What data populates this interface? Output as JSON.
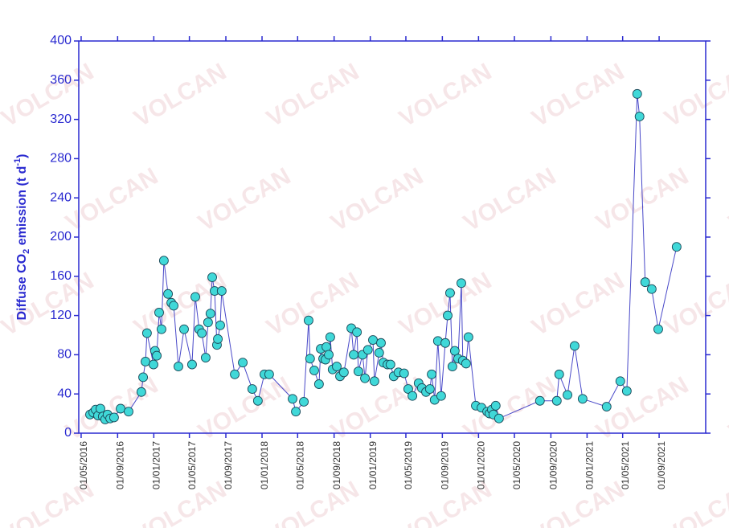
{
  "chart_data": {
    "type": "line",
    "watermark": "VOLCAN",
    "y_label": [
      "Diffuse CO",
      "2",
      " emission (t d",
      "-1",
      ")"
    ],
    "x": [
      "2016-05-31",
      "2016-06-11",
      "2016-06-19",
      "2016-06-27",
      "2016-07-05",
      "2016-07-13",
      "2016-07-21",
      "2016-07-29",
      "2016-08-07",
      "2016-08-20",
      "2016-09-11",
      "2016-10-08",
      "2016-11-20",
      "2016-11-26",
      "2016-12-04",
      "2016-12-09",
      "2016-12-31",
      "2017-01-05",
      "2017-01-11",
      "2017-01-19",
      "2017-01-27",
      "2017-02-04",
      "2017-02-18",
      "2017-03-01",
      "2017-03-09",
      "2017-03-25",
      "2017-04-13",
      "2017-05-10",
      "2017-05-21",
      "2017-06-03",
      "2017-06-12",
      "2017-06-25",
      "2017-07-03",
      "2017-07-11",
      "2017-07-17",
      "2017-07-25",
      "2017-08-02",
      "2017-08-05",
      "2017-08-13",
      "2017-08-18",
      "2017-10-01",
      "2017-10-28",
      "2017-11-29",
      "2017-12-18",
      "2018-01-09",
      "2018-01-25",
      "2018-04-14",
      "2018-04-25",
      "2018-05-22",
      "2018-06-07",
      "2018-06-12",
      "2018-06-26",
      "2018-07-12",
      "2018-07-18",
      "2018-07-26",
      "2018-08-03",
      "2018-08-06",
      "2018-08-14",
      "2018-08-19",
      "2018-08-27",
      "2018-09-10",
      "2018-09-21",
      "2018-10-04",
      "2018-10-29",
      "2018-11-06",
      "2018-11-17",
      "2018-11-22",
      "2018-12-06",
      "2018-12-14",
      "2018-12-24",
      "2019-01-10",
      "2019-01-15",
      "2019-01-31",
      "2019-02-06",
      "2019-02-14",
      "2019-02-28",
      "2019-03-10",
      "2019-03-21",
      "2019-04-06",
      "2019-04-25",
      "2019-05-09",
      "2019-05-23",
      "2019-06-13",
      "2019-06-24",
      "2019-07-08",
      "2019-07-21",
      "2019-07-27",
      "2019-08-06",
      "2019-08-17",
      "2019-08-28",
      "2019-09-11",
      "2019-09-19",
      "2019-09-27",
      "2019-10-05",
      "2019-10-13",
      "2019-10-24",
      "2019-11-04",
      "2019-11-09",
      "2019-11-20",
      "2019-11-28",
      "2019-12-23",
      "2020-01-11",
      "2020-01-30",
      "2020-02-07",
      "2020-02-15",
      "2020-02-20",
      "2020-02-28",
      "2020-03-10",
      "2020-07-26",
      "2020-09-21",
      "2020-09-29",
      "2020-10-27",
      "2020-11-20",
      "2020-12-17",
      "2021-03-08",
      "2021-04-23",
      "2021-05-15",
      "2021-06-19",
      "2021-06-27",
      "2021-07-16",
      "2021-08-07",
      "2021-08-29",
      "2021-10-30"
    ],
    "series": [
      {
        "name": "Diffuse CO2 emission",
        "color": "#40d8d8",
        "line_color": "#4848c8",
        "values": [
          19,
          21,
          24,
          18,
          25,
          17,
          14,
          19,
          15,
          16,
          25,
          22,
          42,
          57,
          73,
          102,
          70,
          84,
          79,
          123,
          106,
          176,
          142,
          133,
          130,
          68,
          106,
          70,
          139,
          106,
          102,
          77,
          113,
          122,
          159,
          145,
          90,
          96,
          110,
          145,
          60,
          72,
          45,
          33,
          60,
          60,
          35,
          22,
          32,
          115,
          76,
          64,
          50,
          86,
          76,
          75,
          88,
          80,
          98,
          65,
          68,
          58,
          62,
          107,
          80,
          103,
          63,
          80,
          56,
          85,
          95,
          53,
          82,
          92,
          72,
          70,
          70,
          58,
          62,
          61,
          45,
          38,
          51,
          46,
          42,
          45,
          60,
          34,
          94,
          38,
          92,
          120,
          143,
          68,
          84,
          76,
          153,
          74,
          71,
          98,
          28,
          26,
          22,
          20,
          24,
          19,
          28,
          15,
          33,
          33,
          60,
          39,
          89,
          35,
          27,
          53,
          43,
          346,
          323,
          154,
          147,
          106,
          190
        ]
      }
    ],
    "xlim": [
      "2016-04-23",
      "2022-02-05"
    ],
    "xticks": [
      {
        "value": "2016-05-01",
        "label": "01/05/2016"
      },
      {
        "value": "2016-09-01",
        "label": "01/09/2016"
      },
      {
        "value": "2017-01-01",
        "label": "01/01/2017"
      },
      {
        "value": "2017-05-01",
        "label": "01/05/2017"
      },
      {
        "value": "2017-09-01",
        "label": "01/09/2017"
      },
      {
        "value": "2018-01-01",
        "label": "01/01/2018"
      },
      {
        "value": "2018-05-01",
        "label": "01/05/2018"
      },
      {
        "value": "2018-09-01",
        "label": "01/09/2018"
      },
      {
        "value": "2019-01-01",
        "label": "01/01/2019"
      },
      {
        "value": "2019-05-01",
        "label": "01/05/2019"
      },
      {
        "value": "2019-09-01",
        "label": "01/09/2019"
      },
      {
        "value": "2020-01-01",
        "label": "01/01/2020"
      },
      {
        "value": "2020-05-01",
        "label": "01/05/2020"
      },
      {
        "value": "2020-09-01",
        "label": "01/09/2020"
      },
      {
        "value": "2021-01-01",
        "label": "01/01/2021"
      },
      {
        "value": "2021-05-01",
        "label": "01/05/2021"
      },
      {
        "value": "2021-09-01",
        "label": "01/09/2021"
      }
    ],
    "ylim": [
      0,
      400
    ],
    "yticks": [
      0,
      40,
      80,
      120,
      160,
      200,
      240,
      280,
      320,
      360,
      400
    ],
    "axis_color": "#2a2ad0",
    "grid": false
  }
}
